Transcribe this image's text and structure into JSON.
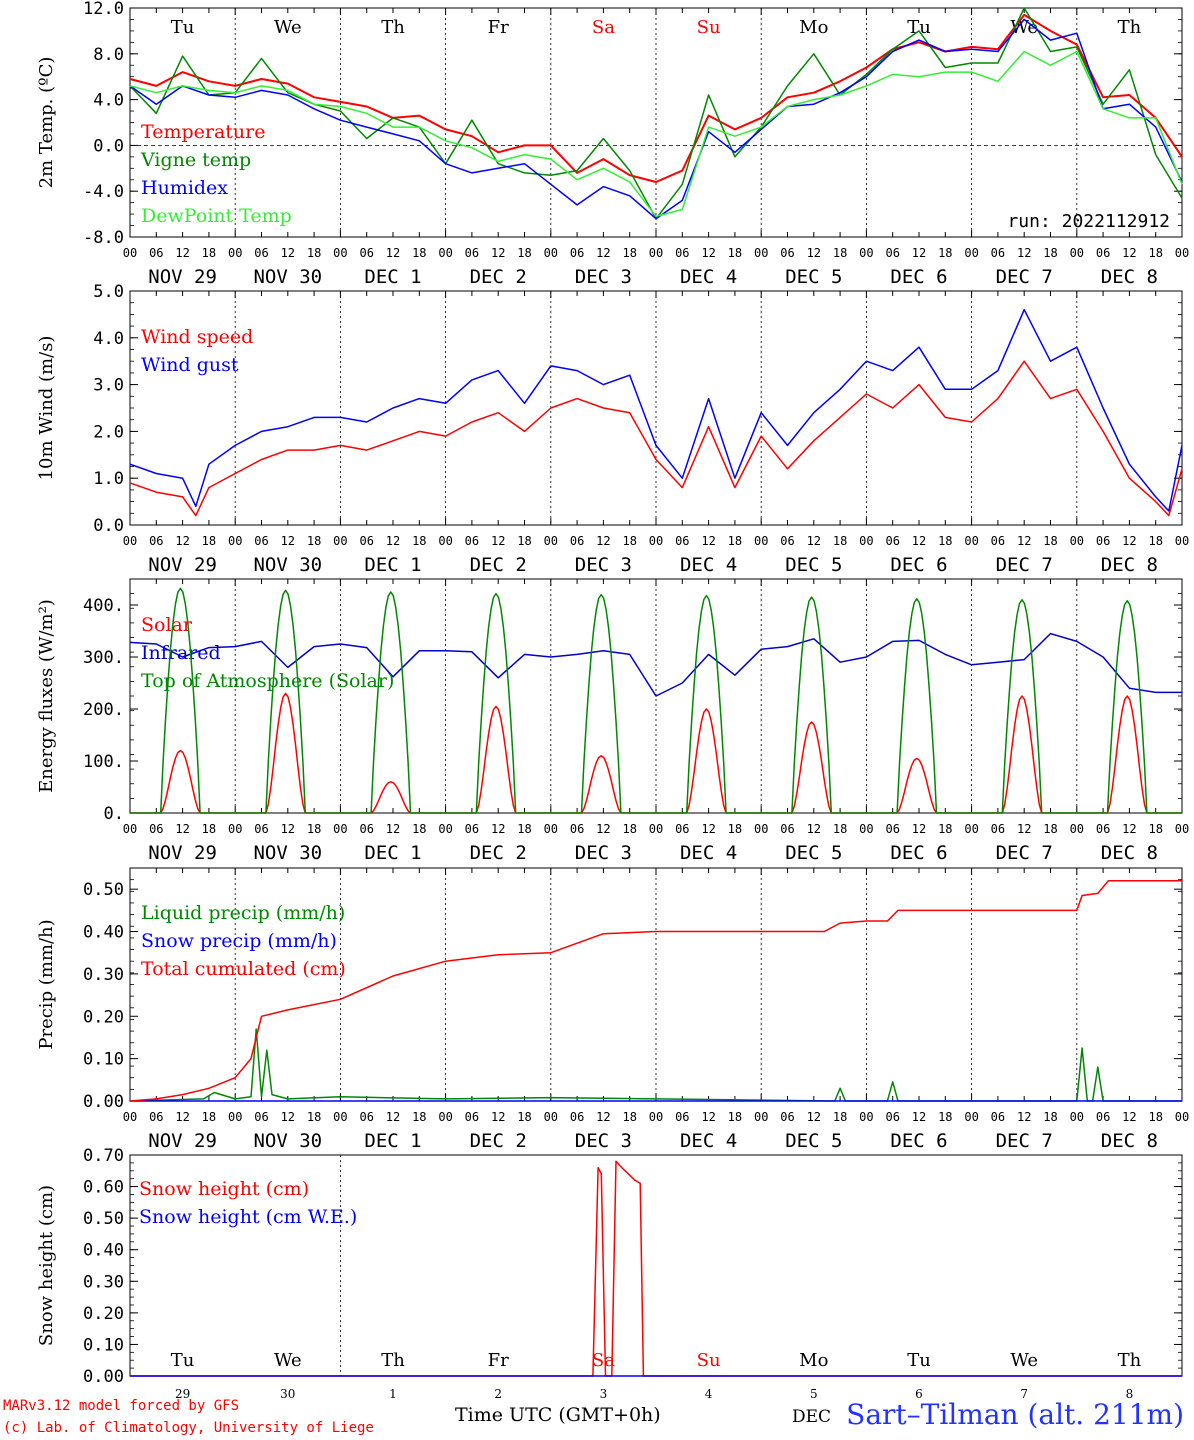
{
  "x_axis": {
    "hour_labels": [
      "00",
      "06",
      "12",
      "18"
    ],
    "final_hour_label": "00",
    "date_labels": [
      "NOV 29",
      "NOV 30",
      "DEC  1",
      "DEC  2",
      "DEC  3",
      "DEC  4",
      "DEC  5",
      "DEC  6",
      "DEC  7",
      "DEC  8"
    ],
    "weekday_labels": [
      "Tu",
      "We",
      "Th",
      "Fr",
      "Sa",
      "Su",
      "Mo",
      "Tu",
      "We",
      "Th"
    ],
    "weekday_colors": [
      "#000000",
      "#000000",
      "#000000",
      "#000000",
      "#ff0000",
      "#ff0000",
      "#000000",
      "#000000",
      "#000000",
      "#000000"
    ],
    "day_numbers": [
      "29",
      "30",
      "1",
      "2",
      "3",
      "4",
      "5",
      "6",
      "7",
      "8"
    ],
    "title": "Time UTC (GMT+0h)",
    "overlap_label": "DEC"
  },
  "footer": {
    "credit_line1": "MARv3.12 model forced by GFS",
    "credit_line2": "(c) Lab. of Climatology, University of Liege",
    "station": "Sart–Tilman (alt. 211m)"
  },
  "chart_data": [
    {
      "type": "line",
      "ylabel": "2m Temp. (ºC)",
      "ylim": [
        -8,
        12
      ],
      "yticks": [
        "-8.0",
        "-4.0",
        "0.0",
        "4.0",
        "8.0",
        "12.0"
      ],
      "zero_line": true,
      "run_label": "run: 2022112912",
      "x_unit": "days since NOV 29 00 UTC",
      "series": [
        {
          "name": "Temperature",
          "color": "#ff0000",
          "x": [
            0,
            0.25,
            0.5,
            0.75,
            1,
            1.25,
            1.5,
            1.75,
            2,
            2.25,
            2.5,
            2.75,
            3,
            3.25,
            3.5,
            3.75,
            4,
            4.25,
            4.5,
            4.75,
            5,
            5.25,
            5.5,
            5.75,
            6,
            6.25,
            6.5,
            6.75,
            7,
            7.25,
            7.5,
            7.75,
            8,
            8.25,
            8.5,
            8.75,
            9,
            9.25,
            9.5,
            9.75,
            10
          ],
          "y": [
            5.8,
            5.2,
            6.4,
            5.6,
            5.2,
            5.8,
            5.4,
            4.2,
            3.8,
            3.4,
            2.4,
            2.6,
            1.4,
            0.8,
            -0.6,
            0,
            0,
            -2.4,
            -1.2,
            -2.6,
            -3.2,
            -2.2,
            2.6,
            1.4,
            2.4,
            4.2,
            4.6,
            5.6,
            6.8,
            8.4,
            9.0,
            8.2,
            8.6,
            8.4,
            11.4,
            10,
            8.8,
            4.2,
            4.4,
            2.4,
            -1
          ]
        },
        {
          "name": "Vigne temp",
          "color": "#008800",
          "x": [
            0,
            0.25,
            0.5,
            0.75,
            1,
            1.25,
            1.5,
            1.75,
            2,
            2.25,
            2.5,
            2.75,
            3,
            3.25,
            3.5,
            3.75,
            4,
            4.25,
            4.5,
            4.75,
            5,
            5.25,
            5.5,
            5.75,
            6,
            6.25,
            6.5,
            6.75,
            7,
            7.25,
            7.5,
            7.75,
            8,
            8.25,
            8.5,
            8.75,
            9,
            9.25,
            9.5,
            9.75,
            10
          ],
          "y": [
            5.2,
            2.8,
            7.8,
            4.4,
            4.6,
            7.6,
            4.6,
            3.6,
            3.0,
            0.6,
            2.4,
            1.6,
            -1.6,
            2.2,
            -1.6,
            -2.4,
            -2.6,
            -2.2,
            0.6,
            -2.2,
            -6.4,
            -3.4,
            4.4,
            -1.0,
            1.6,
            5.2,
            8.0,
            4.4,
            6.2,
            8.4,
            10.0,
            6.8,
            7.2,
            7.2,
            12.0,
            8.2,
            8.6,
            3.6,
            6.6,
            -0.8,
            -4.6
          ]
        },
        {
          "name": "Humidex",
          "color": "#0000ff",
          "x": [
            0,
            0.25,
            0.5,
            0.75,
            1,
            1.25,
            1.5,
            1.75,
            2,
            2.25,
            2.5,
            2.75,
            3,
            3.25,
            3.5,
            3.75,
            4,
            4.25,
            4.5,
            4.75,
            5,
            5.25,
            5.5,
            5.75,
            6,
            6.25,
            6.5,
            6.75,
            7,
            7.25,
            7.5,
            7.75,
            8,
            8.25,
            8.5,
            8.75,
            9,
            9.25,
            9.5,
            9.75,
            10
          ],
          "y": [
            5.2,
            3.6,
            5.2,
            4.4,
            4.2,
            4.8,
            4.4,
            3.2,
            2.2,
            1.6,
            1.0,
            0.4,
            -1.6,
            -2.4,
            -2.0,
            -1.6,
            -3.4,
            -5.2,
            -3.6,
            -4.4,
            -6.4,
            -4.8,
            1.2,
            -0.6,
            1.4,
            3.4,
            3.6,
            4.6,
            6.0,
            8.2,
            9.2,
            8.2,
            8.4,
            8.2,
            11.0,
            9.2,
            9.8,
            3.2,
            3.6,
            1.6,
            -3.2
          ]
        },
        {
          "name": "DewPoint Temp",
          "color": "#33ee33",
          "x": [
            0,
            0.25,
            0.5,
            0.75,
            1,
            1.25,
            1.5,
            1.75,
            2,
            2.25,
            2.5,
            2.75,
            3,
            3.25,
            3.5,
            3.75,
            4,
            4.25,
            4.5,
            4.75,
            5,
            5.25,
            5.5,
            5.75,
            6,
            6.25,
            6.5,
            6.75,
            7,
            7.25,
            7.5,
            7.75,
            8,
            8.25,
            8.5,
            8.75,
            9,
            9.25,
            9.5,
            9.75,
            10
          ],
          "y": [
            5.2,
            4.6,
            5.2,
            4.8,
            4.6,
            5.2,
            4.8,
            3.6,
            3.4,
            2.8,
            1.6,
            1.6,
            0.4,
            -0.2,
            -1.4,
            -0.8,
            -1.2,
            -3.0,
            -2.0,
            -3.2,
            -6.2,
            -5.6,
            1.6,
            0.8,
            1.6,
            3.4,
            4.0,
            4.4,
            5.2,
            6.2,
            6.0,
            6.4,
            6.4,
            5.6,
            8.2,
            7.0,
            8.2,
            3.2,
            2.4,
            2.4,
            -3.4
          ]
        }
      ]
    },
    {
      "type": "line",
      "ylabel": "10m Wind (m/s)",
      "ylim": [
        0,
        5
      ],
      "yticks": [
        "0.0",
        "1.0",
        "2.0",
        "3.0",
        "4.0",
        "5.0"
      ],
      "x_unit": "days since NOV 29 00 UTC",
      "series": [
        {
          "name": "Wind speed",
          "color": "#ff0000",
          "x": [
            0,
            0.25,
            0.5,
            0.625,
            0.75,
            1,
            1.25,
            1.5,
            1.75,
            2,
            2.25,
            2.5,
            2.75,
            3,
            3.25,
            3.5,
            3.75,
            4,
            4.25,
            4.5,
            4.75,
            5,
            5.25,
            5.5,
            5.75,
            6,
            6.25,
            6.5,
            6.75,
            7,
            7.25,
            7.5,
            7.75,
            8,
            8.25,
            8.5,
            8.75,
            9,
            9.25,
            9.5,
            9.75,
            9.875,
            10
          ],
          "y": [
            0.9,
            0.7,
            0.6,
            0.2,
            0.8,
            1.1,
            1.4,
            1.6,
            1.6,
            1.7,
            1.6,
            1.8,
            2.0,
            1.9,
            2.2,
            2.4,
            2.0,
            2.5,
            2.7,
            2.5,
            2.4,
            1.4,
            0.8,
            2.1,
            0.8,
            1.9,
            1.2,
            1.8,
            2.3,
            2.8,
            2.5,
            3.0,
            2.3,
            2.2,
            2.7,
            3.5,
            2.7,
            2.9,
            2.0,
            1.0,
            0.5,
            0.2,
            1.2
          ]
        },
        {
          "name": "Wind gust",
          "color": "#0000ff",
          "x": [
            0,
            0.25,
            0.5,
            0.625,
            0.75,
            1,
            1.25,
            1.5,
            1.75,
            2,
            2.25,
            2.5,
            2.75,
            3,
            3.25,
            3.5,
            3.75,
            4,
            4.25,
            4.5,
            4.75,
            5,
            5.25,
            5.5,
            5.75,
            6,
            6.25,
            6.5,
            6.75,
            7,
            7.25,
            7.5,
            7.75,
            8,
            8.25,
            8.5,
            8.75,
            9,
            9.25,
            9.5,
            9.75,
            9.875,
            10
          ],
          "y": [
            1.3,
            1.1,
            1.0,
            0.4,
            1.3,
            1.7,
            2.0,
            2.1,
            2.3,
            2.3,
            2.2,
            2.5,
            2.7,
            2.6,
            3.1,
            3.3,
            2.6,
            3.4,
            3.3,
            3.0,
            3.2,
            1.7,
            1.0,
            2.7,
            1.0,
            2.4,
            1.7,
            2.4,
            2.9,
            3.5,
            3.3,
            3.8,
            2.9,
            2.9,
            3.3,
            4.6,
            3.5,
            3.8,
            2.5,
            1.3,
            0.6,
            0.3,
            1.7
          ]
        }
      ]
    },
    {
      "type": "line",
      "ylabel": "Energy fluxes (W/m²)",
      "ylim": [
        0,
        450
      ],
      "yticks": [
        "0.",
        "100.",
        "200.",
        "300.",
        "400."
      ],
      "x_unit": "days since NOV 29 00 UTC",
      "daily_sun_window_hours": [
        7,
        16
      ],
      "series": [
        {
          "name": "Solar",
          "color": "#ff0000",
          "daily_peak": [
            120,
            230,
            60,
            205,
            110,
            200,
            175,
            105,
            225,
            225
          ]
        },
        {
          "name": "Infrared",
          "color": "#0000cc",
          "x": [
            0,
            0.25,
            0.5,
            0.75,
            1,
            1.25,
            1.5,
            1.75,
            2,
            2.25,
            2.5,
            2.75,
            3,
            3.25,
            3.5,
            3.75,
            4,
            4.25,
            4.5,
            4.75,
            5,
            5.25,
            5.5,
            5.75,
            6,
            6.25,
            6.5,
            6.75,
            7,
            7.25,
            7.5,
            7.75,
            8,
            8.25,
            8.5,
            8.75,
            9,
            9.25,
            9.5,
            9.75,
            10
          ],
          "y": [
            328,
            325,
            300,
            318,
            320,
            330,
            280,
            320,
            325,
            318,
            262,
            312,
            312,
            310,
            260,
            305,
            300,
            305,
            312,
            305,
            225,
            250,
            305,
            265,
            315,
            320,
            335,
            290,
            300,
            330,
            332,
            305,
            285,
            290,
            295,
            345,
            330,
            300,
            240,
            232,
            232
          ]
        },
        {
          "name": "Top of Atmosphere (Solar)",
          "color": "#008800",
          "daily_peak": [
            432,
            428,
            425,
            422,
            420,
            418,
            415,
            412,
            410,
            408
          ]
        }
      ]
    },
    {
      "type": "line",
      "ylabel": "Precip (mm/h)",
      "ylim": [
        0,
        0.55
      ],
      "yticks": [
        "0.00",
        "0.10",
        "0.20",
        "0.30",
        "0.40",
        "0.50"
      ],
      "x_unit": "days since NOV 29 00 UTC",
      "series": [
        {
          "name": "Liquid precip (mm/h)",
          "color": "#008800",
          "x": [
            0,
            0.7,
            0.8,
            1.0,
            1.15,
            1.2,
            1.25,
            1.3,
            1.35,
            1.5,
            2.0,
            3.0,
            4.0,
            6.7,
            6.75,
            6.8,
            7.2,
            7.25,
            7.3,
            9.0,
            9.05,
            9.1,
            9.15,
            9.2,
            9.25,
            9.3,
            10
          ],
          "y": [
            0,
            0.005,
            0.02,
            0.005,
            0.01,
            0.17,
            0.01,
            0.12,
            0.015,
            0.005,
            0.01,
            0.005,
            0.008,
            0,
            0.03,
            0,
            0,
            0.045,
            0,
            0,
            0.125,
            0,
            0,
            0.08,
            0,
            0,
            0
          ]
        },
        {
          "name": "Snow precip (mm/h)",
          "color": "#0000ff",
          "x": [
            0,
            10
          ],
          "y": [
            0,
            0
          ]
        },
        {
          "name": "Total cumulated (cm)",
          "color": "#ff0000",
          "x": [
            0,
            0.25,
            0.5,
            0.75,
            1,
            1.15,
            1.25,
            1.5,
            2,
            2.5,
            3,
            3.5,
            4,
            4.5,
            5,
            6,
            6.6,
            6.75,
            7,
            7.2,
            7.3,
            8,
            9,
            9.05,
            9.2,
            9.3,
            10
          ],
          "y": [
            0,
            0.005,
            0.015,
            0.03,
            0.055,
            0.1,
            0.2,
            0.215,
            0.24,
            0.295,
            0.33,
            0.345,
            0.35,
            0.395,
            0.4,
            0.4,
            0.4,
            0.42,
            0.425,
            0.425,
            0.45,
            0.45,
            0.45,
            0.485,
            0.49,
            0.52,
            0.52
          ]
        }
      ]
    },
    {
      "type": "line",
      "ylabel": "Snow height (cm)",
      "ylim": [
        0,
        0.7
      ],
      "yticks": [
        "0.00",
        "0.10",
        "0.20",
        "0.30",
        "0.40",
        "0.50",
        "0.60",
        "0.70"
      ],
      "x_unit": "days since NOV 29 00 UTC",
      "series": [
        {
          "name": "Snow height (cm)",
          "color": "#ff0000",
          "x": [
            0,
            4.4,
            4.45,
            4.48,
            4.52,
            4.58,
            4.62,
            4.66,
            4.8,
            4.85,
            4.88,
            10
          ],
          "y": [
            0,
            0,
            0.66,
            0.64,
            0,
            0,
            0.68,
            0.665,
            0.62,
            0.61,
            0,
            0
          ]
        },
        {
          "name": "Snow height (cm W.E.)",
          "color": "#0000ff",
          "x": [
            0,
            10
          ],
          "y": [
            0,
            0
          ]
        }
      ]
    }
  ]
}
